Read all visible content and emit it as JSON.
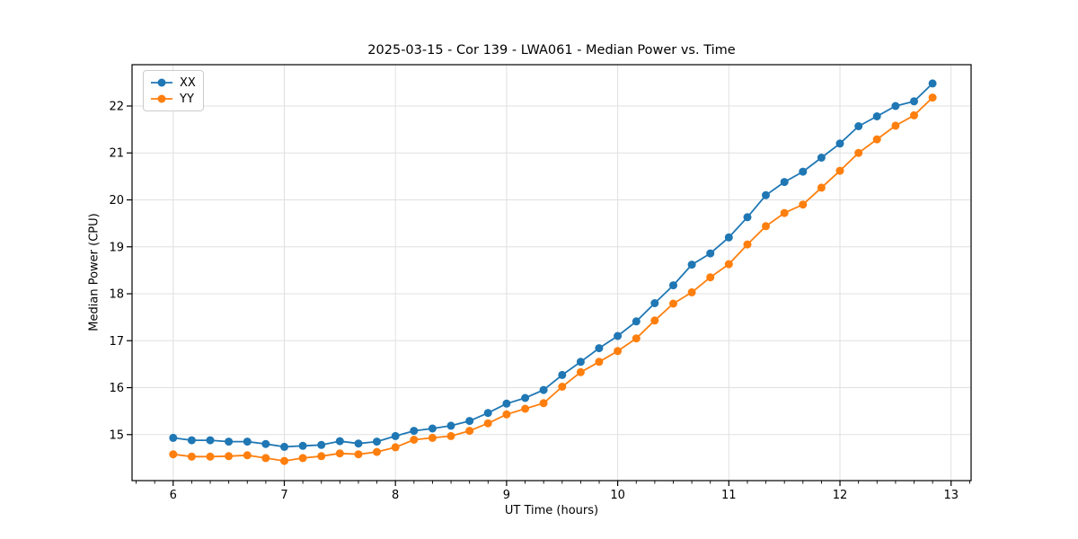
{
  "chart_data": {
    "type": "line",
    "title": "2025-03-15 - Cor 139 - LWA061 - Median Power vs. Time",
    "xlabel": "UT Time (hours)",
    "ylabel": "Median Power (CPU)",
    "xlim": [
      5.63,
      13.18
    ],
    "ylim": [
      14.02,
      22.88
    ],
    "x_ticks": [
      6,
      7,
      8,
      9,
      10,
      11,
      12,
      13
    ],
    "y_ticks": [
      15,
      16,
      17,
      18,
      19,
      20,
      21,
      22
    ],
    "x_minor_tick_step": 0.16667,
    "grid": true,
    "legend_position": "upper left",
    "marker": "o",
    "x": [
      6.0,
      6.167,
      6.333,
      6.5,
      6.667,
      6.833,
      7.0,
      7.167,
      7.333,
      7.5,
      7.667,
      7.833,
      8.0,
      8.167,
      8.333,
      8.5,
      8.667,
      8.833,
      9.0,
      9.167,
      9.333,
      9.5,
      9.667,
      9.833,
      10.0,
      10.167,
      10.333,
      10.5,
      10.667,
      10.833,
      11.0,
      11.167,
      11.333,
      11.5,
      11.667,
      11.833,
      12.0,
      12.167,
      12.333,
      12.5,
      12.667,
      12.833
    ],
    "series": [
      {
        "name": "XX",
        "color": "#1f77b4",
        "values": [
          14.93,
          14.88,
          14.88,
          14.85,
          14.85,
          14.8,
          14.74,
          14.76,
          14.78,
          14.86,
          14.81,
          14.85,
          14.97,
          15.08,
          15.13,
          15.19,
          15.29,
          15.46,
          15.66,
          15.78,
          15.95,
          16.27,
          16.55,
          16.84,
          17.1,
          17.41,
          17.8,
          18.18,
          18.62,
          18.86,
          19.2,
          19.63,
          20.1,
          20.38,
          20.6,
          20.9,
          21.2,
          21.57,
          21.78,
          22.0,
          22.1,
          22.48
        ]
      },
      {
        "name": "YY",
        "color": "#ff7f0e",
        "values": [
          14.58,
          14.53,
          14.53,
          14.54,
          14.56,
          14.5,
          14.44,
          14.5,
          14.54,
          14.6,
          14.58,
          14.63,
          14.73,
          14.89,
          14.93,
          14.97,
          15.08,
          15.24,
          15.43,
          15.55,
          15.67,
          16.02,
          16.33,
          16.55,
          16.78,
          17.05,
          17.43,
          17.79,
          18.03,
          18.35,
          18.63,
          19.05,
          19.44,
          19.72,
          19.9,
          20.26,
          20.62,
          21.0,
          21.29,
          21.58,
          21.8,
          22.18
        ]
      }
    ],
    "colors": {
      "grid": "#e0e0e0",
      "spine": "#000000",
      "text": "#000000",
      "background": "#ffffff"
    }
  }
}
